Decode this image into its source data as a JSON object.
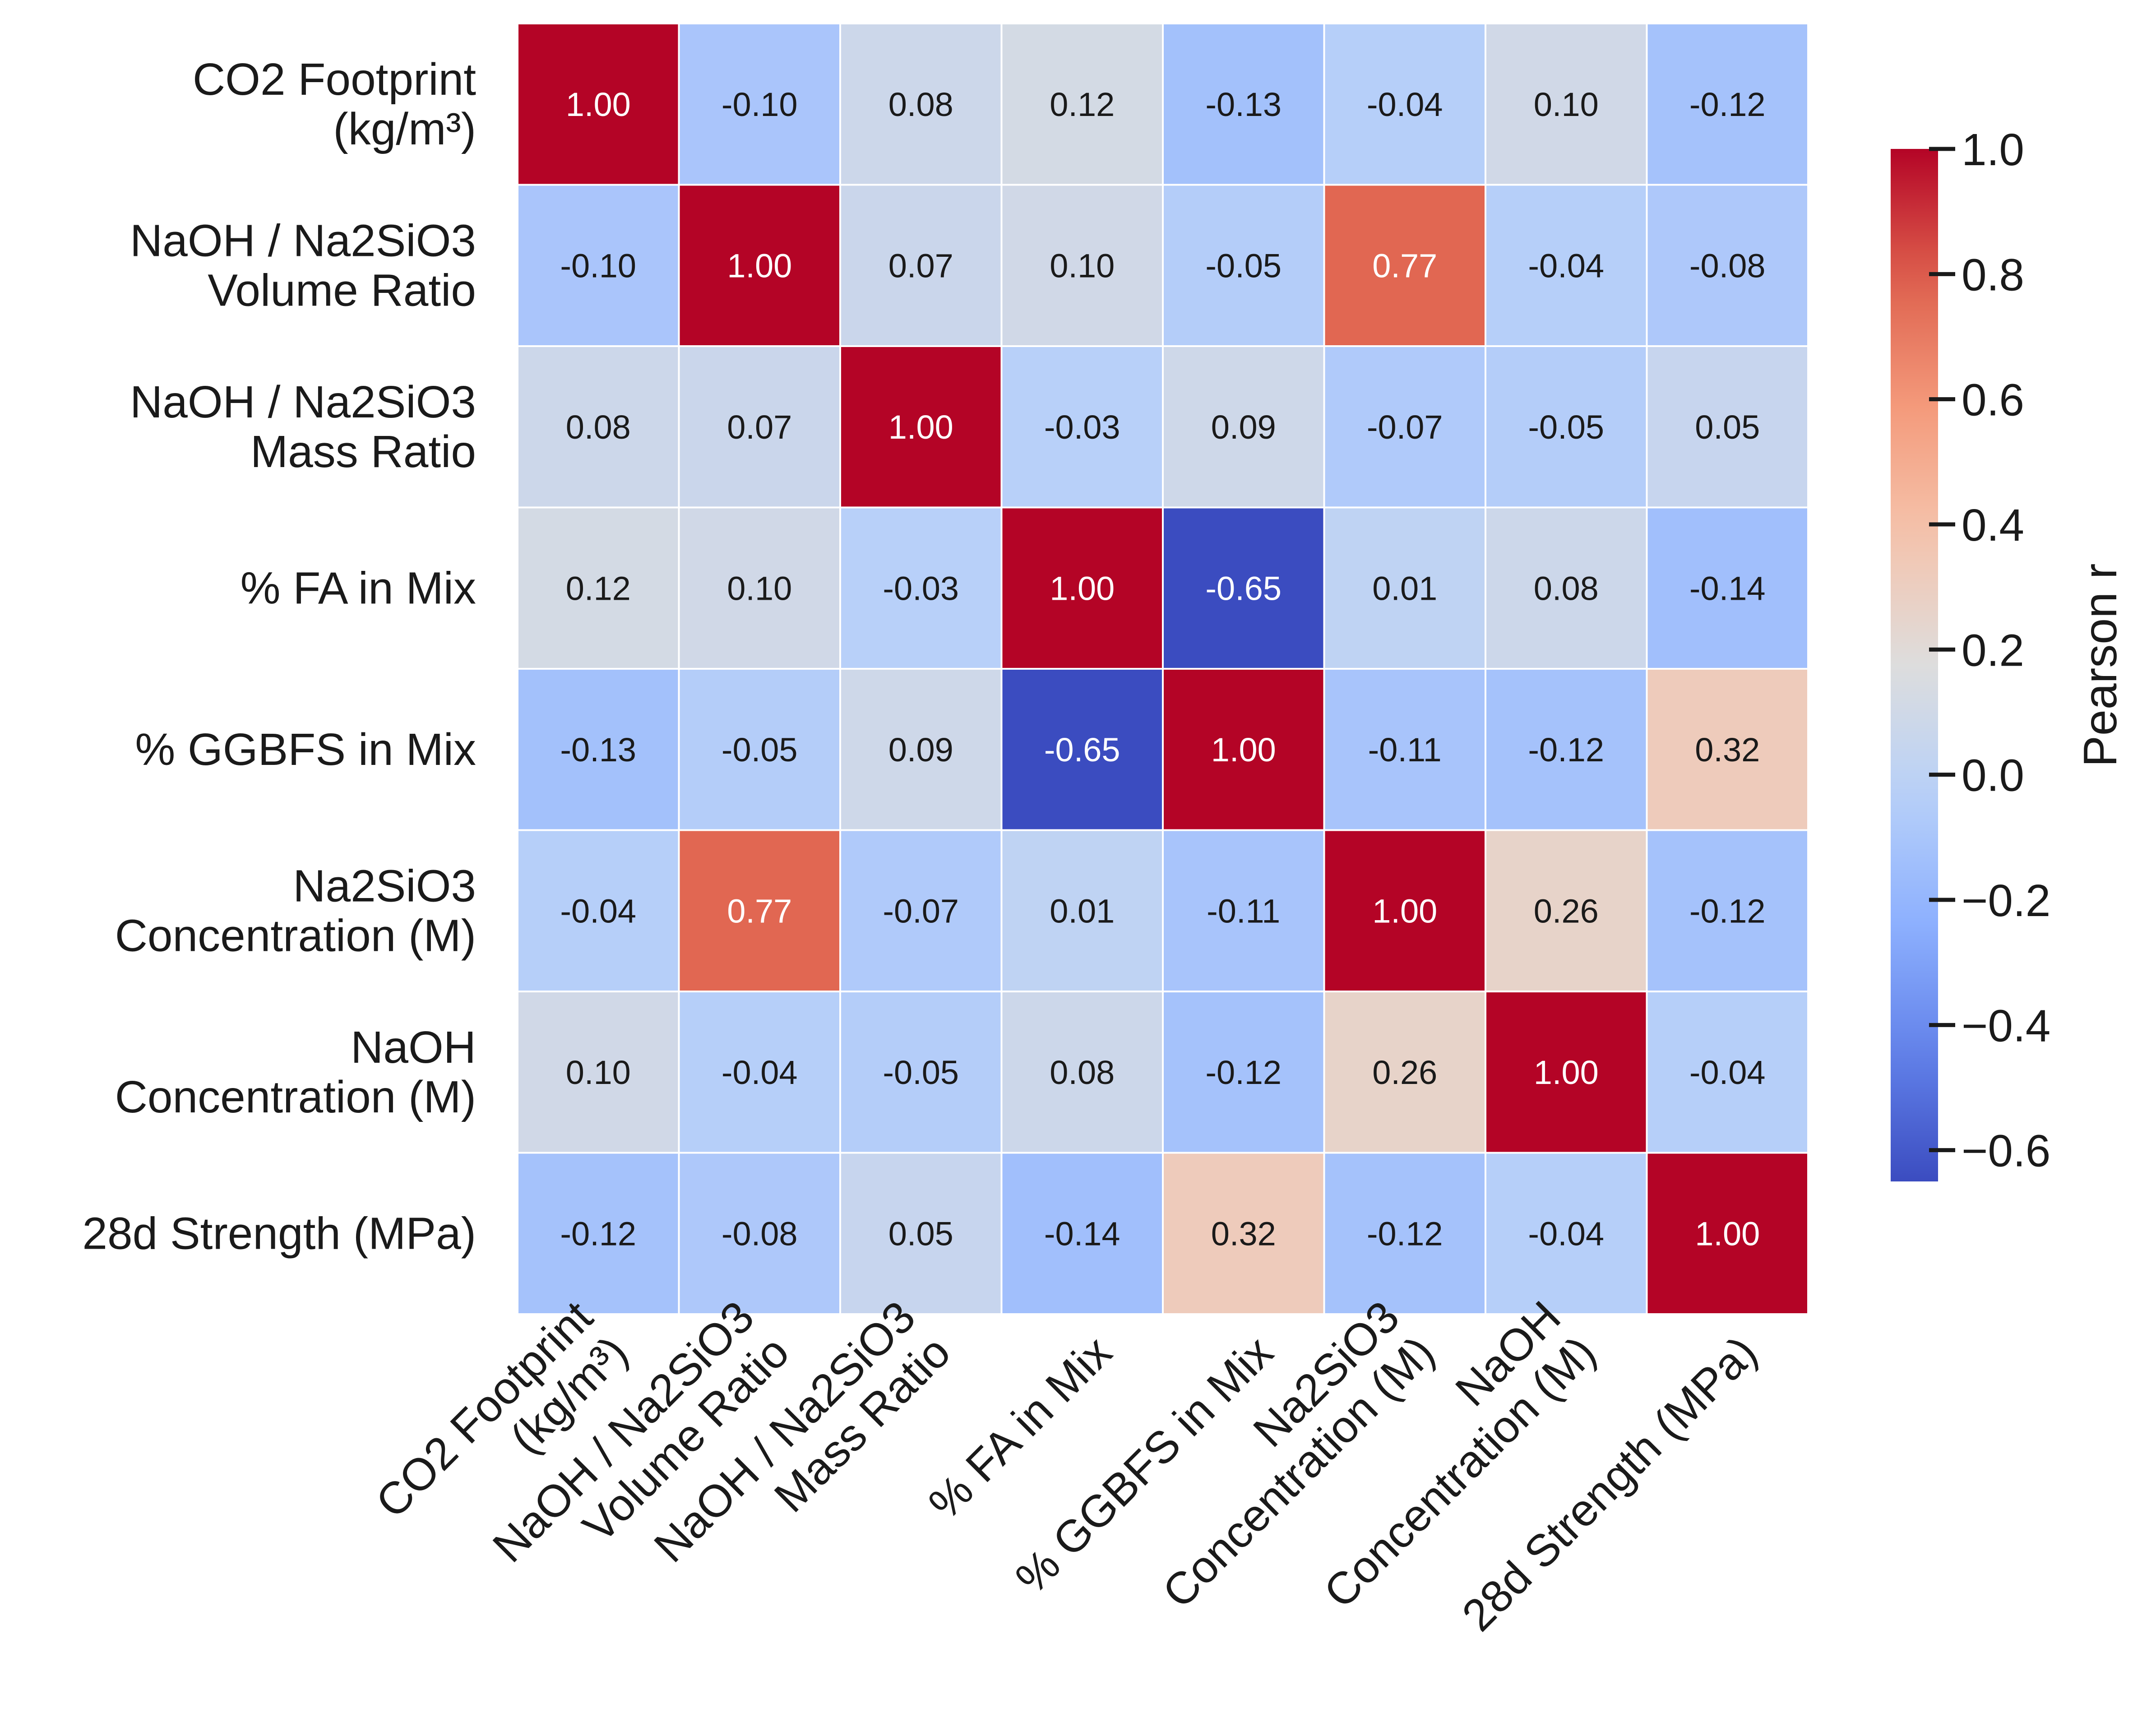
{
  "chart_data": {
    "type": "heatmap",
    "labels": [
      "CO2 Footprint\n(kg/m³)",
      "NaOH / Na2SiO3\nVolume Ratio",
      "NaOH / Na2SiO3\nMass Ratio",
      "% FA in Mix",
      "% GGBFS in Mix",
      "Na2SiO3\nConcentration (M)",
      "NaOH\nConcentration (M)",
      "28d Strength (MPa)"
    ],
    "matrix": [
      [
        1.0,
        -0.1,
        0.08,
        0.12,
        -0.13,
        -0.04,
        0.1,
        -0.12
      ],
      [
        -0.1,
        1.0,
        0.07,
        0.1,
        -0.05,
        0.77,
        -0.04,
        -0.08
      ],
      [
        0.08,
        0.07,
        1.0,
        -0.03,
        0.09,
        -0.07,
        -0.05,
        0.05
      ],
      [
        0.12,
        0.1,
        -0.03,
        1.0,
        -0.65,
        0.01,
        0.08,
        -0.14
      ],
      [
        -0.13,
        -0.05,
        0.09,
        -0.65,
        1.0,
        -0.11,
        -0.12,
        0.32
      ],
      [
        -0.04,
        0.77,
        -0.07,
        0.01,
        -0.11,
        1.0,
        0.26,
        -0.12
      ],
      [
        0.1,
        -0.04,
        -0.05,
        0.08,
        -0.12,
        0.26,
        1.0,
        -0.04
      ],
      [
        -0.12,
        -0.08,
        0.05,
        -0.14,
        0.32,
        -0.12,
        -0.04,
        1.0
      ]
    ],
    "value_format": "0.00",
    "colormap": "coolwarm",
    "vmin": -0.65,
    "vmax": 1.0,
    "colorbar": {
      "label": "Pearson r",
      "ticks": [
        1.0,
        0.8,
        0.6,
        0.4,
        0.2,
        0.0,
        -0.2,
        -0.4,
        -0.6
      ],
      "tick_labels": [
        "1.0",
        "0.8",
        "0.6",
        "0.4",
        "0.2",
        "0.0",
        "−0.2",
        "−0.4",
        "−0.6"
      ]
    },
    "colors": {
      "cool_end": "#3b4cc0",
      "neutral": "#dddddd",
      "warm_end": "#b40426",
      "cell_border": "#ffffff"
    }
  }
}
